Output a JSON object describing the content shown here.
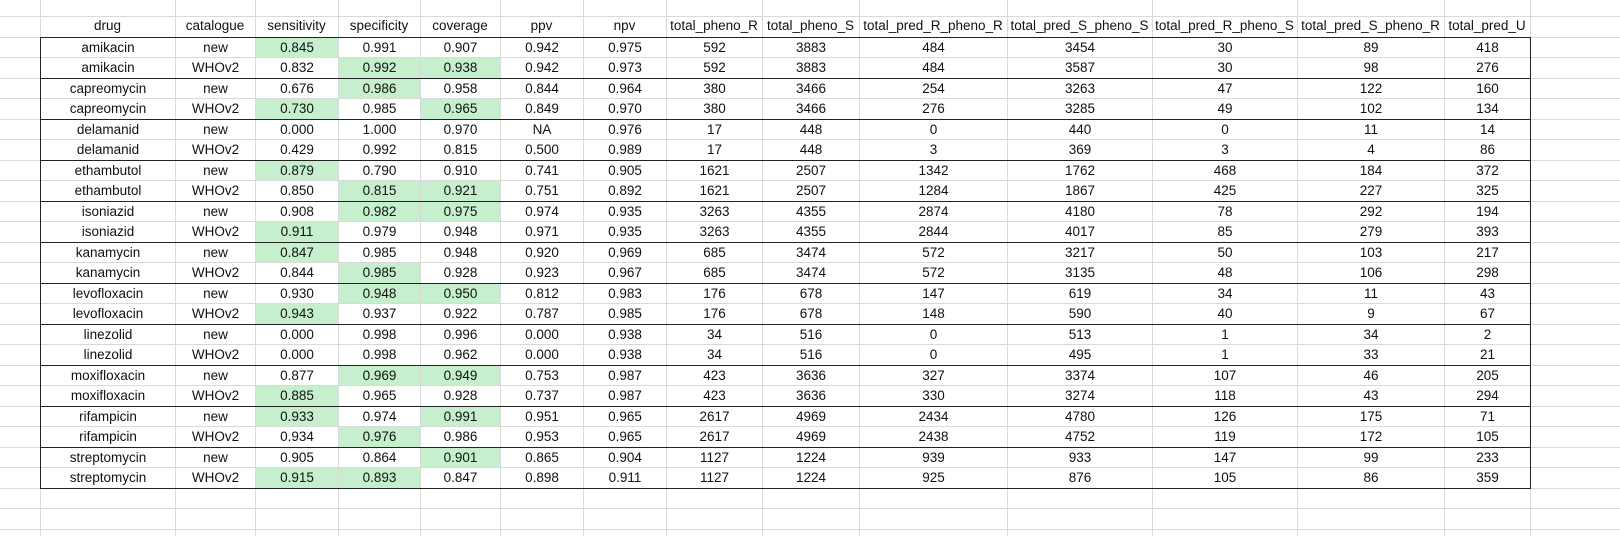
{
  "table": {
    "columns": [
      "drug",
      "catalogue",
      "sensitivity",
      "specificity",
      "coverage",
      "ppv",
      "npv",
      "total_pheno_R",
      "total_pheno_S",
      "total_pred_R_pheno_R",
      "total_pred_S_pheno_S",
      "total_pred_R_pheno_S",
      "total_pred_S_pheno_R",
      "total_pred_U"
    ],
    "highlight_color": "#c6efce",
    "rows": [
      {
        "cells": [
          "amikacin",
          "new",
          "0.845",
          "0.991",
          "0.907",
          "0.942",
          "0.975",
          "592",
          "3883",
          "484",
          "3454",
          "30",
          "89",
          "418"
        ],
        "hl": [
          2
        ]
      },
      {
        "cells": [
          "amikacin",
          "WHOv2",
          "0.832",
          "0.992",
          "0.938",
          "0.942",
          "0.973",
          "592",
          "3883",
          "484",
          "3587",
          "30",
          "98",
          "276"
        ],
        "hl": [
          3,
          4
        ]
      },
      {
        "cells": [
          "capreomycin",
          "new",
          "0.676",
          "0.986",
          "0.958",
          "0.844",
          "0.964",
          "380",
          "3466",
          "254",
          "3263",
          "47",
          "122",
          "160"
        ],
        "hl": [
          3
        ]
      },
      {
        "cells": [
          "capreomycin",
          "WHOv2",
          "0.730",
          "0.985",
          "0.965",
          "0.849",
          "0.970",
          "380",
          "3466",
          "276",
          "3285",
          "49",
          "102",
          "134"
        ],
        "hl": [
          2,
          4
        ]
      },
      {
        "cells": [
          "delamanid",
          "new",
          "0.000",
          "1.000",
          "0.970",
          "NA",
          "0.976",
          "17",
          "448",
          "0",
          "440",
          "0",
          "11",
          "14"
        ],
        "hl": []
      },
      {
        "cells": [
          "delamanid",
          "WHOv2",
          "0.429",
          "0.992",
          "0.815",
          "0.500",
          "0.989",
          "17",
          "448",
          "3",
          "369",
          "3",
          "4",
          "86"
        ],
        "hl": []
      },
      {
        "cells": [
          "ethambutol",
          "new",
          "0.879",
          "0.790",
          "0.910",
          "0.741",
          "0.905",
          "1621",
          "2507",
          "1342",
          "1762",
          "468",
          "184",
          "372"
        ],
        "hl": [
          2
        ]
      },
      {
        "cells": [
          "ethambutol",
          "WHOv2",
          "0.850",
          "0.815",
          "0.921",
          "0.751",
          "0.892",
          "1621",
          "2507",
          "1284",
          "1867",
          "425",
          "227",
          "325"
        ],
        "hl": [
          3,
          4
        ]
      },
      {
        "cells": [
          "isoniazid",
          "new",
          "0.908",
          "0.982",
          "0.975",
          "0.974",
          "0.935",
          "3263",
          "4355",
          "2874",
          "4180",
          "78",
          "292",
          "194"
        ],
        "hl": [
          3,
          4
        ]
      },
      {
        "cells": [
          "isoniazid",
          "WHOv2",
          "0.911",
          "0.979",
          "0.948",
          "0.971",
          "0.935",
          "3263",
          "4355",
          "2844",
          "4017",
          "85",
          "279",
          "393"
        ],
        "hl": [
          2
        ]
      },
      {
        "cells": [
          "kanamycin",
          "new",
          "0.847",
          "0.985",
          "0.948",
          "0.920",
          "0.969",
          "685",
          "3474",
          "572",
          "3217",
          "50",
          "103",
          "217"
        ],
        "hl": [
          2
        ]
      },
      {
        "cells": [
          "kanamycin",
          "WHOv2",
          "0.844",
          "0.985",
          "0.928",
          "0.923",
          "0.967",
          "685",
          "3474",
          "572",
          "3135",
          "48",
          "106",
          "298"
        ],
        "hl": [
          3
        ]
      },
      {
        "cells": [
          "levofloxacin",
          "new",
          "0.930",
          "0.948",
          "0.950",
          "0.812",
          "0.983",
          "176",
          "678",
          "147",
          "619",
          "34",
          "11",
          "43"
        ],
        "hl": [
          3,
          4
        ]
      },
      {
        "cells": [
          "levofloxacin",
          "WHOv2",
          "0.943",
          "0.937",
          "0.922",
          "0.787",
          "0.985",
          "176",
          "678",
          "148",
          "590",
          "40",
          "9",
          "67"
        ],
        "hl": [
          2
        ]
      },
      {
        "cells": [
          "linezolid",
          "new",
          "0.000",
          "0.998",
          "0.996",
          "0.000",
          "0.938",
          "34",
          "516",
          "0",
          "513",
          "1",
          "34",
          "2"
        ],
        "hl": []
      },
      {
        "cells": [
          "linezolid",
          "WHOv2",
          "0.000",
          "0.998",
          "0.962",
          "0.000",
          "0.938",
          "34",
          "516",
          "0",
          "495",
          "1",
          "33",
          "21"
        ],
        "hl": []
      },
      {
        "cells": [
          "moxifloxacin",
          "new",
          "0.877",
          "0.969",
          "0.949",
          "0.753",
          "0.987",
          "423",
          "3636",
          "327",
          "3374",
          "107",
          "46",
          "205"
        ],
        "hl": [
          3,
          4
        ]
      },
      {
        "cells": [
          "moxifloxacin",
          "WHOv2",
          "0.885",
          "0.965",
          "0.928",
          "0.737",
          "0.987",
          "423",
          "3636",
          "330",
          "3274",
          "118",
          "43",
          "294"
        ],
        "hl": [
          2
        ]
      },
      {
        "cells": [
          "rifampicin",
          "new",
          "0.933",
          "0.974",
          "0.991",
          "0.951",
          "0.965",
          "2617",
          "4969",
          "2434",
          "4780",
          "126",
          "175",
          "71"
        ],
        "hl": [
          2,
          4
        ]
      },
      {
        "cells": [
          "rifampicin",
          "WHOv2",
          "0.934",
          "0.976",
          "0.986",
          "0.953",
          "0.965",
          "2617",
          "4969",
          "2438",
          "4752",
          "119",
          "172",
          "105"
        ],
        "hl": [
          3
        ]
      },
      {
        "cells": [
          "streptomycin",
          "new",
          "0.905",
          "0.864",
          "0.901",
          "0.865",
          "0.904",
          "1127",
          "1224",
          "939",
          "933",
          "147",
          "99",
          "233"
        ],
        "hl": [
          4
        ]
      },
      {
        "cells": [
          "streptomycin",
          "WHOv2",
          "0.915",
          "0.893",
          "0.847",
          "0.898",
          "0.911",
          "1127",
          "1224",
          "925",
          "876",
          "105",
          "86",
          "359"
        ],
        "hl": [
          2,
          3
        ]
      }
    ]
  }
}
